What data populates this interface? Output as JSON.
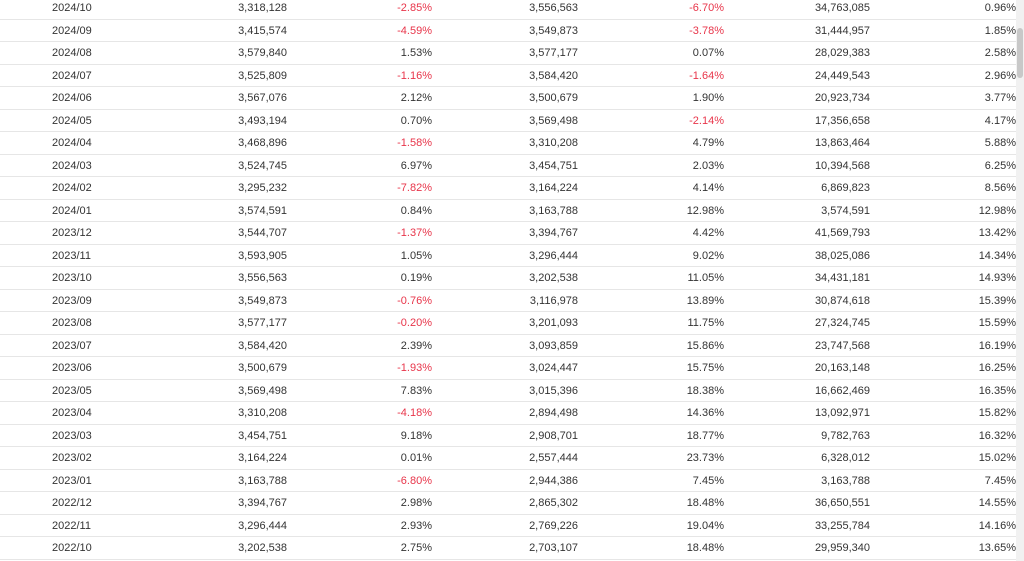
{
  "table": {
    "rows": [
      [
        "2024/10",
        "3,318,128",
        "-2.85%",
        "3,556,563",
        "-6.70%",
        "34,763,085",
        "0.96%"
      ],
      [
        "2024/09",
        "3,415,574",
        "-4.59%",
        "3,549,873",
        "-3.78%",
        "31,444,957",
        "1.85%"
      ],
      [
        "2024/08",
        "3,579,840",
        "1.53%",
        "3,577,177",
        "0.07%",
        "28,029,383",
        "2.58%"
      ],
      [
        "2024/07",
        "3,525,809",
        "-1.16%",
        "3,584,420",
        "-1.64%",
        "24,449,543",
        "2.96%"
      ],
      [
        "2024/06",
        "3,567,076",
        "2.12%",
        "3,500,679",
        "1.90%",
        "20,923,734",
        "3.77%"
      ],
      [
        "2024/05",
        "3,493,194",
        "0.70%",
        "3,569,498",
        "-2.14%",
        "17,356,658",
        "4.17%"
      ],
      [
        "2024/04",
        "3,468,896",
        "-1.58%",
        "3,310,208",
        "4.79%",
        "13,863,464",
        "5.88%"
      ],
      [
        "2024/03",
        "3,524,745",
        "6.97%",
        "3,454,751",
        "2.03%",
        "10,394,568",
        "6.25%"
      ],
      [
        "2024/02",
        "3,295,232",
        "-7.82%",
        "3,164,224",
        "4.14%",
        "6,869,823",
        "8.56%"
      ],
      [
        "2024/01",
        "3,574,591",
        "0.84%",
        "3,163,788",
        "12.98%",
        "3,574,591",
        "12.98%"
      ],
      [
        "2023/12",
        "3,544,707",
        "-1.37%",
        "3,394,767",
        "4.42%",
        "41,569,793",
        "13.42%"
      ],
      [
        "2023/11",
        "3,593,905",
        "1.05%",
        "3,296,444",
        "9.02%",
        "38,025,086",
        "14.34%"
      ],
      [
        "2023/10",
        "3,556,563",
        "0.19%",
        "3,202,538",
        "11.05%",
        "34,431,181",
        "14.93%"
      ],
      [
        "2023/09",
        "3,549,873",
        "-0.76%",
        "3,116,978",
        "13.89%",
        "30,874,618",
        "15.39%"
      ],
      [
        "2023/08",
        "3,577,177",
        "-0.20%",
        "3,201,093",
        "11.75%",
        "27,324,745",
        "15.59%"
      ],
      [
        "2023/07",
        "3,584,420",
        "2.39%",
        "3,093,859",
        "15.86%",
        "23,747,568",
        "16.19%"
      ],
      [
        "2023/06",
        "3,500,679",
        "-1.93%",
        "3,024,447",
        "15.75%",
        "20,163,148",
        "16.25%"
      ],
      [
        "2023/05",
        "3,569,498",
        "7.83%",
        "3,015,396",
        "18.38%",
        "16,662,469",
        "16.35%"
      ],
      [
        "2023/04",
        "3,310,208",
        "-4.18%",
        "2,894,498",
        "14.36%",
        "13,092,971",
        "15.82%"
      ],
      [
        "2023/03",
        "3,454,751",
        "9.18%",
        "2,908,701",
        "18.77%",
        "9,782,763",
        "16.32%"
      ],
      [
        "2023/02",
        "3,164,224",
        "0.01%",
        "2,557,444",
        "23.73%",
        "6,328,012",
        "15.02%"
      ],
      [
        "2023/01",
        "3,163,788",
        "-6.80%",
        "2,944,386",
        "7.45%",
        "3,163,788",
        "7.45%"
      ],
      [
        "2022/12",
        "3,394,767",
        "2.98%",
        "2,865,302",
        "18.48%",
        "36,650,551",
        "14.55%"
      ],
      [
        "2022/11",
        "3,296,444",
        "2.93%",
        "2,769,226",
        "19.04%",
        "33,255,784",
        "14.16%"
      ],
      [
        "2022/10",
        "3,202,538",
        "2.75%",
        "2,703,107",
        "18.48%",
        "29,959,340",
        "13.65%"
      ]
    ]
  },
  "colors": {
    "negative": "#e8354a",
    "text": "#333333",
    "row_border": "#e6e6e6"
  }
}
